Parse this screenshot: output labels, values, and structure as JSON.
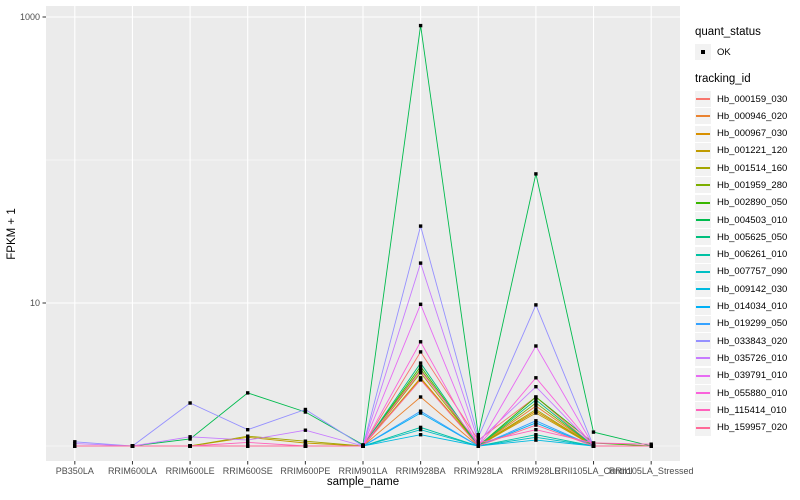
{
  "legend": {
    "quant_status_title": "quant_status",
    "ok_label": "OK",
    "tracking_id_title": "tracking_id"
  },
  "chart_data": {
    "type": "line",
    "title": "",
    "xlabel": "sample_name",
    "ylabel": "FPKM + 1",
    "y_scale": "log10",
    "ylim": [
      0.95,
      1100
    ],
    "y_ticks": [
      {
        "value": 1000,
        "label": "1000"
      },
      {
        "value": 10,
        "label": "10"
      }
    ],
    "y_minor_gridlines": [
      100,
      1
    ],
    "grid": true,
    "legend_position": "right",
    "panel_bg": "#EBEBEB",
    "grid_color": "#FFFFFF",
    "tick_color": "#333333",
    "tick_label_color": "#4D4D4D",
    "point_color": "#000000",
    "point_shape": "filled-square",
    "categories": [
      "PB350LA",
      "RRIM600LA",
      "RRIM600LE",
      "RRIM600SE",
      "RRIM600PE",
      "RRIM901LA",
      "RRIM928BA",
      "RRIM928LA",
      "RRIM928LE",
      "RRII105LA_Control",
      "RRII105LA_Stressed"
    ],
    "series": [
      {
        "name": "Hb_000159_030",
        "color": "#F8766D",
        "values": [
          1.0,
          1.0,
          1.0,
          1.0,
          1.0,
          1.0,
          4.55,
          1.1,
          2.2,
          1.0,
          1.0
        ]
      },
      {
        "name": "Hb_000946_020",
        "color": "#EA8331",
        "values": [
          1.0,
          1.0,
          1.0,
          1.0,
          1.0,
          1.0,
          2.2,
          1.0,
          1.9,
          1.0,
          1.0
        ]
      },
      {
        "name": "Hb_000967_030",
        "color": "#D89000",
        "values": [
          1.0,
          1.0,
          1.0,
          1.0,
          1.0,
          1.0,
          3.0,
          1.0,
          1.75,
          1.0,
          1.0
        ]
      },
      {
        "name": "Hb_001221_120",
        "color": "#C09B00",
        "values": [
          1.0,
          1.0,
          1.0,
          1.15,
          1.05,
          1.0,
          2.95,
          1.0,
          1.7,
          1.0,
          1.0
        ]
      },
      {
        "name": "Hb_001514_160",
        "color": "#A3A500",
        "values": [
          1.0,
          1.0,
          1.0,
          1.17,
          1.08,
          1.0,
          3.25,
          1.0,
          1.8,
          1.0,
          1.0
        ]
      },
      {
        "name": "Hb_001959_280",
        "color": "#7CAE00",
        "values": [
          1.0,
          1.0,
          1.0,
          1.0,
          1.0,
          1.0,
          3.45,
          1.0,
          2.0,
          1.0,
          1.0
        ]
      },
      {
        "name": "Hb_002890_050",
        "color": "#39B600",
        "values": [
          1.0,
          1.0,
          1.0,
          1.0,
          1.0,
          1.0,
          3.6,
          1.0,
          2.2,
          1.05,
          1.0
        ]
      },
      {
        "name": "Hb_004503_010",
        "color": "#00BB4E",
        "values": [
          1.0,
          1.0,
          1.12,
          2.35,
          1.73,
          1.02,
          870,
          1.2,
          80,
          1.25,
          1.0
        ]
      },
      {
        "name": "Hb_005625_050",
        "color": "#00BF7D",
        "values": [
          1.0,
          1.0,
          1.0,
          1.0,
          1.0,
          1.0,
          3.8,
          1.0,
          2.1,
          1.0,
          1.0
        ]
      },
      {
        "name": "Hb_006261_010",
        "color": "#00C1A3",
        "values": [
          1.0,
          1.0,
          1.0,
          1.0,
          1.0,
          1.0,
          1.35,
          1.0,
          1.2,
          1.0,
          1.0
        ]
      },
      {
        "name": "Hb_007757_090",
        "color": "#00BFC4",
        "values": [
          1.0,
          1.0,
          1.0,
          1.0,
          1.0,
          1.0,
          1.3,
          1.0,
          1.15,
          1.0,
          1.0
        ]
      },
      {
        "name": "Hb_009142_030",
        "color": "#00BAE0",
        "values": [
          1.0,
          1.0,
          1.0,
          1.0,
          1.0,
          1.0,
          1.2,
          1.0,
          1.1,
          1.0,
          1.0
        ]
      },
      {
        "name": "Hb_014034_010",
        "color": "#00B0F6",
        "values": [
          1.0,
          1.0,
          1.0,
          1.0,
          1.0,
          1.0,
          1.7,
          1.0,
          1.45,
          1.0,
          1.0
        ]
      },
      {
        "name": "Hb_019299_050",
        "color": "#35A2FF",
        "values": [
          1.0,
          1.0,
          1.0,
          1.0,
          1.0,
          1.0,
          1.75,
          1.0,
          1.5,
          1.0,
          1.0
        ]
      },
      {
        "name": "Hb_033843_020",
        "color": "#9590FF",
        "values": [
          1.07,
          1.0,
          2.0,
          1.3,
          1.8,
          1.0,
          34.5,
          1.15,
          9.7,
          1.0,
          1.0
        ]
      },
      {
        "name": "Hb_035726_010",
        "color": "#C77CFF",
        "values": [
          1.04,
          1.0,
          1.16,
          1.1,
          1.29,
          1.0,
          19.0,
          1.08,
          2.6,
          1.0,
          1.0
        ]
      },
      {
        "name": "Hb_039791_010",
        "color": "#E76BF3",
        "values": [
          1.0,
          1.0,
          1.0,
          1.0,
          1.0,
          1.0,
          9.8,
          1.0,
          5.0,
          1.0,
          1.0
        ]
      },
      {
        "name": "Hb_055880_010",
        "color": "#FA62DB",
        "values": [
          1.0,
          1.0,
          1.0,
          1.0,
          1.0,
          1.0,
          5.35,
          1.0,
          3.0,
          1.0,
          1.0
        ]
      },
      {
        "name": "Hb_115414_010",
        "color": "#FF62BC",
        "values": [
          1.0,
          1.0,
          1.0,
          1.06,
          1.0,
          1.0,
          3.35,
          1.05,
          1.3,
          1.05,
          1.03
        ]
      },
      {
        "name": "Hb_159957_020",
        "color": "#FF6A98",
        "values": [
          1.0,
          1.0,
          1.0,
          1.0,
          1.0,
          1.0,
          2.9,
          1.0,
          1.4,
          1.0,
          1.0
        ]
      }
    ]
  }
}
